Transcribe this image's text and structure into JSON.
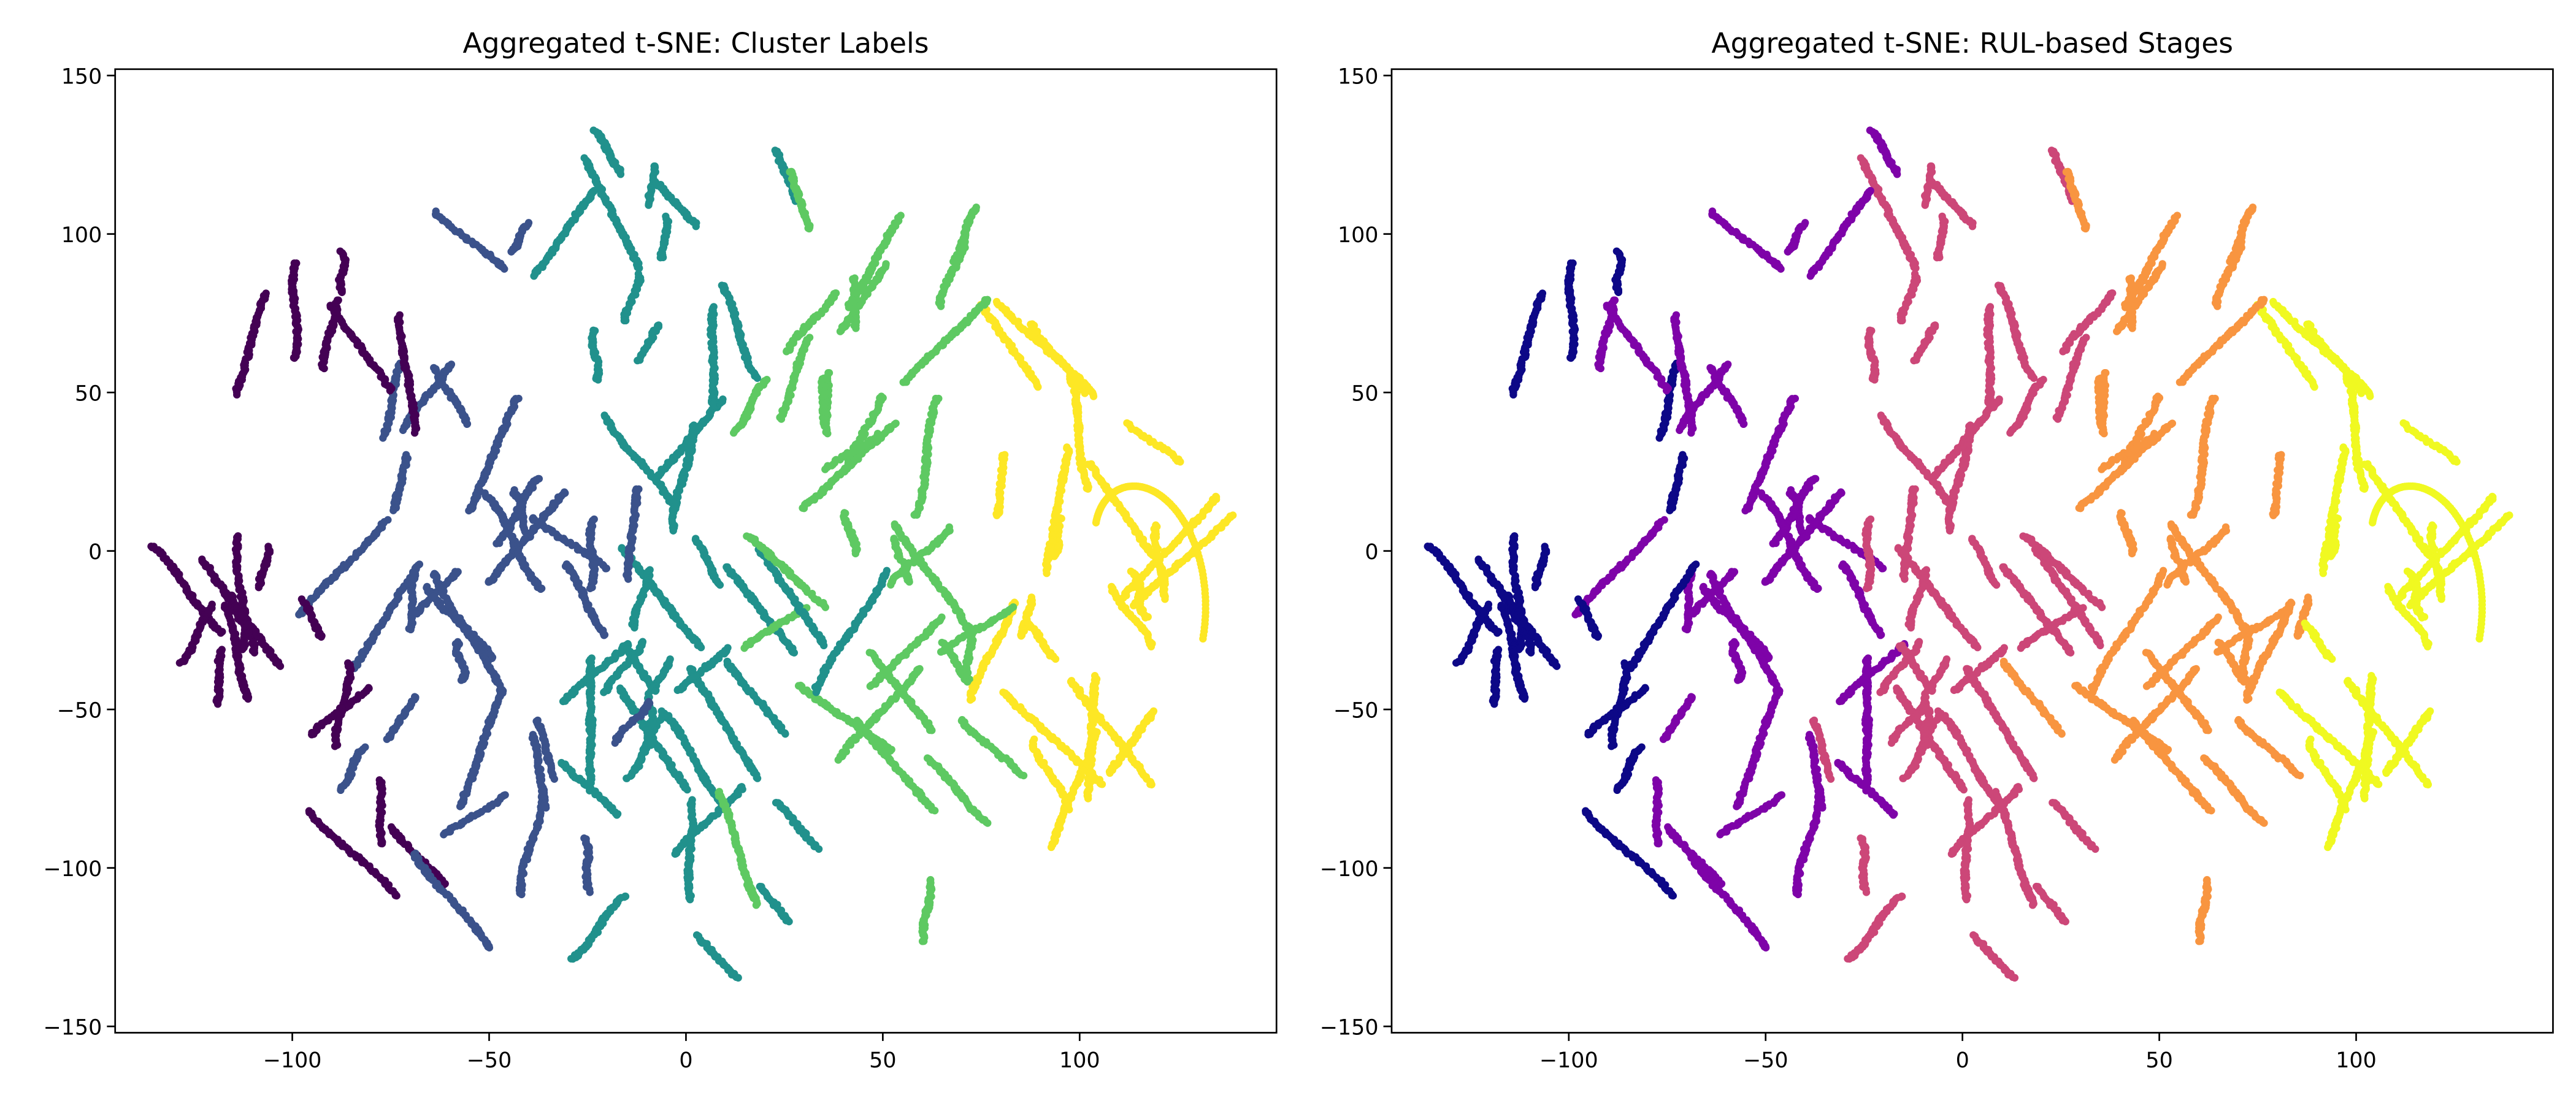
{
  "chart_data": [
    {
      "type": "scatter",
      "title": "Aggregated t-SNE: Cluster Labels",
      "xlabel": "",
      "ylabel": "",
      "xlim": [
        -145,
        150
      ],
      "ylim": [
        -152,
        152
      ],
      "xticks": [
        -100,
        -50,
        0,
        50,
        100
      ],
      "yticks": [
        -150,
        -100,
        -50,
        0,
        50,
        100,
        150
      ],
      "xtick_labels": [
        "−100",
        "−50",
        "0",
        "50",
        "100"
      ],
      "ytick_labels": [
        "−150",
        "−100",
        "−50",
        "0",
        "50",
        "100",
        "150"
      ],
      "grid": false,
      "legend": "none",
      "colormap": "viridis",
      "palette": [
        "#440154",
        "#3b528b",
        "#21918c",
        "#5ec962",
        "#fde725"
      ],
      "x_range_points": [
        -135,
        135
      ],
      "y_range_points": [
        -140,
        138
      ],
      "points_approximate": "thousands of points arranged in short worm-like strands filling an ellipse; color shifts from dark purple on the left through blue and green to yellow on the right"
    },
    {
      "type": "scatter",
      "title": "Aggregated t-SNE: RUL-based Stages",
      "xlabel": "",
      "ylabel": "",
      "xlim": [
        -145,
        150
      ],
      "ylim": [
        -152,
        152
      ],
      "xticks": [
        -100,
        -50,
        0,
        50,
        100
      ],
      "yticks": [
        -150,
        -100,
        -50,
        0,
        50,
        100,
        150
      ],
      "xtick_labels": [
        "−100",
        "−50",
        "0",
        "50",
        "100"
      ],
      "ytick_labels": [
        "−150",
        "−100",
        "−50",
        "0",
        "50",
        "100",
        "150"
      ],
      "grid": false,
      "legend": "none",
      "colormap": "plasma",
      "palette": [
        "#0d0887",
        "#7e03a8",
        "#cc4778",
        "#f89540",
        "#f0f921"
      ],
      "x_range_points": [
        -135,
        135
      ],
      "y_range_points": [
        -140,
        138
      ],
      "points_approximate": "same strand layout as the left panel; color shifts from dark navy on the left through purple and pink to orange and yellow on the right"
    }
  ]
}
